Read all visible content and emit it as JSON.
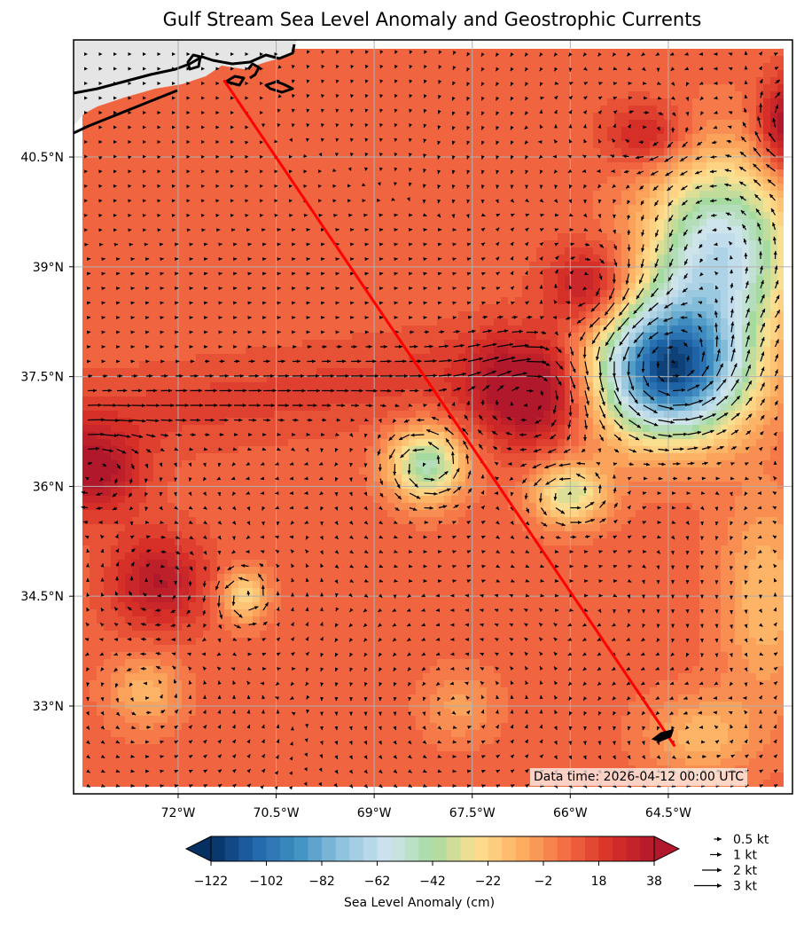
{
  "chart_data": {
    "type": "heatmap",
    "title": "Gulf Stream Sea Level Anomaly and Geostrophic Currents",
    "extent": {
      "lon": [
        -73.6,
        -62.6
      ],
      "lat": [
        31.8,
        42.1
      ]
    },
    "x_ticks": [
      "72°W",
      "70.5°W",
      "69°W",
      "67.5°W",
      "66°W",
      "64.5°W"
    ],
    "x_tick_values": [
      -72,
      -70.5,
      -69,
      -67.5,
      -66,
      -64.5
    ],
    "y_ticks": [
      "40.5°N",
      "39°N",
      "37.5°N",
      "36°N",
      "34.5°N",
      "33°N"
    ],
    "y_tick_values": [
      40.5,
      39,
      37.5,
      36,
      34.5,
      33
    ],
    "grid": true,
    "colorbar": {
      "label": "Sea Level Anomaly (cm)",
      "min": -122,
      "max": 38,
      "step": 5,
      "tick_labels": [
        "−122",
        "−102",
        "−82",
        "−62",
        "−42",
        "−22",
        "−2",
        "18",
        "38"
      ],
      "tick_values": [
        -122,
        -102,
        -82,
        -62,
        -42,
        -22,
        -2,
        18,
        38
      ],
      "colormap": [
        "#053061",
        "#2166ac",
        "#4393c3",
        "#92c5de",
        "#d1e5f0",
        "#a6dba0",
        "#fee090",
        "#fdae61",
        "#f46d43",
        "#d73027",
        "#b2182b"
      ]
    },
    "features": [
      {
        "kind": "eddy",
        "lon": -64.5,
        "lat": 37.6,
        "sla": -120,
        "sigma_lon": 0.8,
        "sigma_lat": 0.65,
        "rotation": "ccw"
      },
      {
        "kind": "eddy",
        "lon": -63.7,
        "lat": 39.2,
        "sla": -70,
        "sigma_lon": 0.8,
        "sigma_lat": 0.9,
        "rotation": "ccw"
      },
      {
        "kind": "eddy",
        "lon": -68.2,
        "lat": 36.3,
        "sla": -55,
        "sigma_lon": 0.4,
        "sigma_lat": 0.35,
        "rotation": "ccw"
      },
      {
        "kind": "eddy",
        "lon": -66.0,
        "lat": 35.9,
        "sla": -42,
        "sigma_lon": 0.4,
        "sigma_lat": 0.3,
        "rotation": "ccw"
      },
      {
        "kind": "eddy",
        "lon": -71.0,
        "lat": 34.5,
        "sla": -32,
        "sigma_lon": 0.25,
        "sigma_lat": 0.25,
        "rotation": "ccw"
      },
      {
        "kind": "eddy",
        "lon": -66.6,
        "lat": 37.3,
        "sla": 42,
        "sigma_lon": 0.6,
        "sigma_lat": 0.5,
        "rotation": "cw"
      },
      {
        "kind": "eddy",
        "lon": -65.7,
        "lat": 38.7,
        "sla": 30,
        "sigma_lon": 0.45,
        "sigma_lat": 0.4,
        "rotation": "cw"
      },
      {
        "kind": "eddy",
        "lon": -72.3,
        "lat": 34.7,
        "sla": 28,
        "sigma_lon": 0.5,
        "sigma_lat": 0.45,
        "rotation": "cw"
      },
      {
        "kind": "eddy",
        "lon": -73.3,
        "lat": 36.2,
        "sla": 32,
        "sigma_lon": 0.5,
        "sigma_lat": 0.4,
        "rotation": "cw"
      },
      {
        "kind": "eddy",
        "lon": -64.8,
        "lat": 40.8,
        "sla": 22,
        "sigma_lon": 0.45,
        "sigma_lat": 0.3,
        "rotation": "cw"
      },
      {
        "kind": "eddy",
        "lon": -62.7,
        "lat": 40.9,
        "sla": 36,
        "sigma_lon": 0.3,
        "sigma_lat": 0.45,
        "rotation": "cw"
      },
      {
        "kind": "eddy",
        "lon": -72.5,
        "lat": 33.2,
        "sla": -20,
        "sigma_lon": 0.4,
        "sigma_lat": 0.35,
        "rotation": "ccw"
      },
      {
        "kind": "eddy",
        "lon": -63.0,
        "lat": 34.5,
        "sla": -22,
        "sigma_lon": 0.5,
        "sigma_lat": 1.0,
        "rotation": "ccw"
      },
      {
        "kind": "eddy",
        "lon": -64.0,
        "lat": 32.6,
        "sla": -20,
        "sigma_lon": 0.6,
        "sigma_lat": 0.4,
        "rotation": "ccw"
      },
      {
        "kind": "eddy",
        "lon": -67.7,
        "lat": 33.0,
        "sla": -14,
        "sigma_lon": 0.4,
        "sigma_lat": 0.35,
        "rotation": "ccw"
      }
    ],
    "route": {
      "color": "#ff0000",
      "points": [
        [
          -71.3,
          41.55
        ],
        [
          -64.4,
          32.45
        ]
      ]
    },
    "vector_legend": [
      "0.5 kt",
      "1 kt",
      "2 kt",
      "3 kt"
    ],
    "vector_legend_values": [
      0.5,
      1,
      2,
      3
    ],
    "annotation": "Data time: 2026-04-12 00:00 UTC"
  }
}
